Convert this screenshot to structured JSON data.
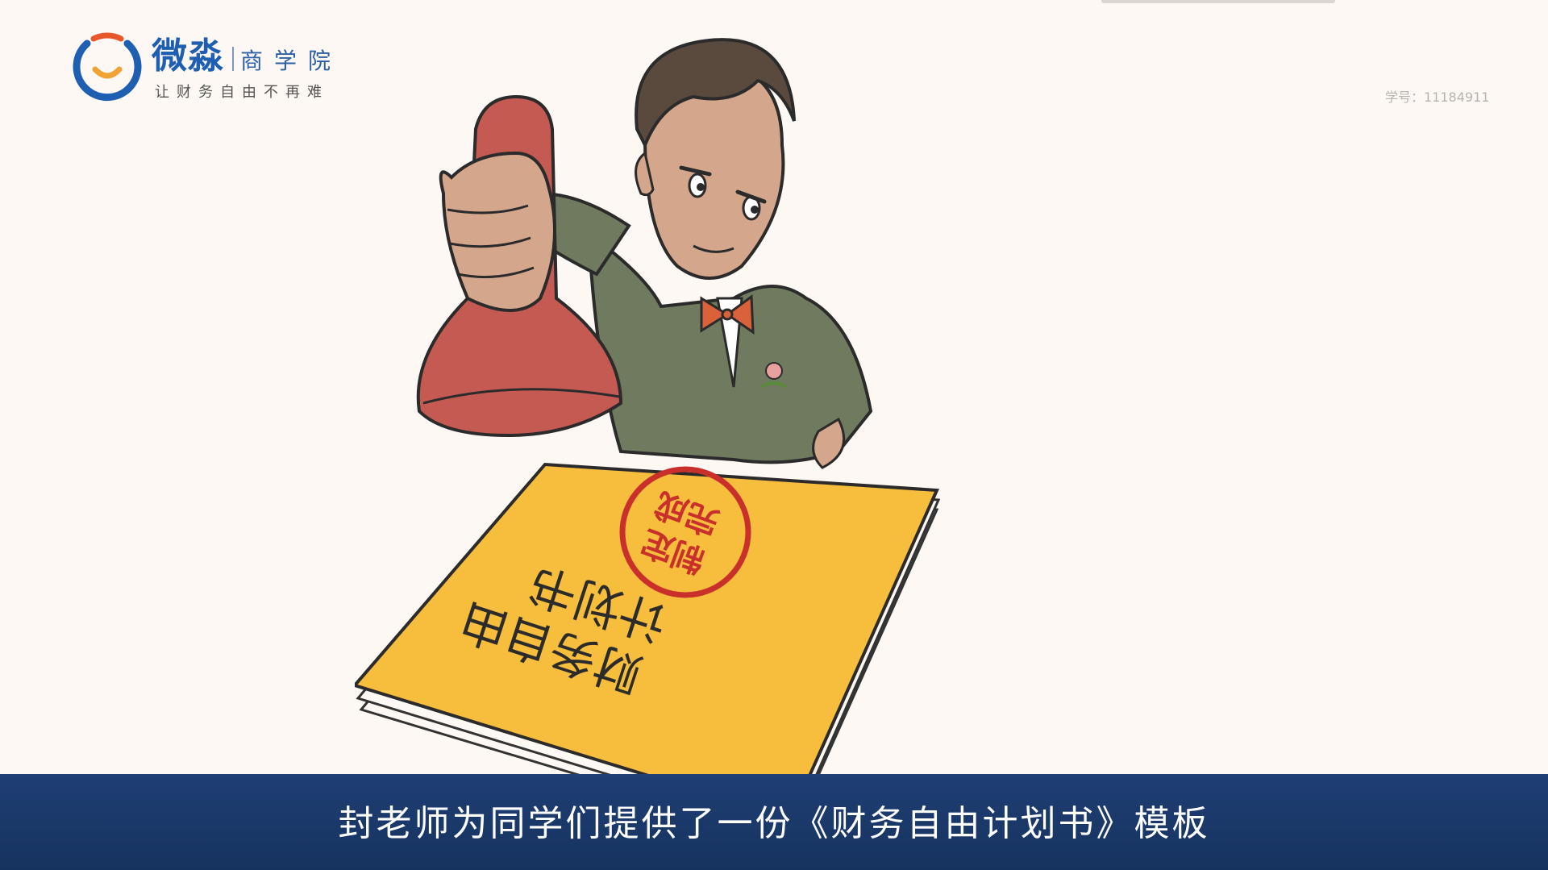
{
  "logo": {
    "brand": "微淼",
    "school": "商学院",
    "slogan": "让财务自由不再难",
    "colors": {
      "blue": "#1e5fb2",
      "orange": "#f0a234",
      "red_orange": "#e8562a"
    }
  },
  "student_id": "学号：11184911",
  "illustration": {
    "document_title_line1": "财务自由",
    "document_title_line2": "计划书",
    "stamp_line1": "制定",
    "stamp_line2": "完成",
    "stamp_color": "#c9302c",
    "folder_color": "#f7bd3c"
  },
  "subtitle": "封老师为同学们提供了一份《财务自由计划书》模板"
}
